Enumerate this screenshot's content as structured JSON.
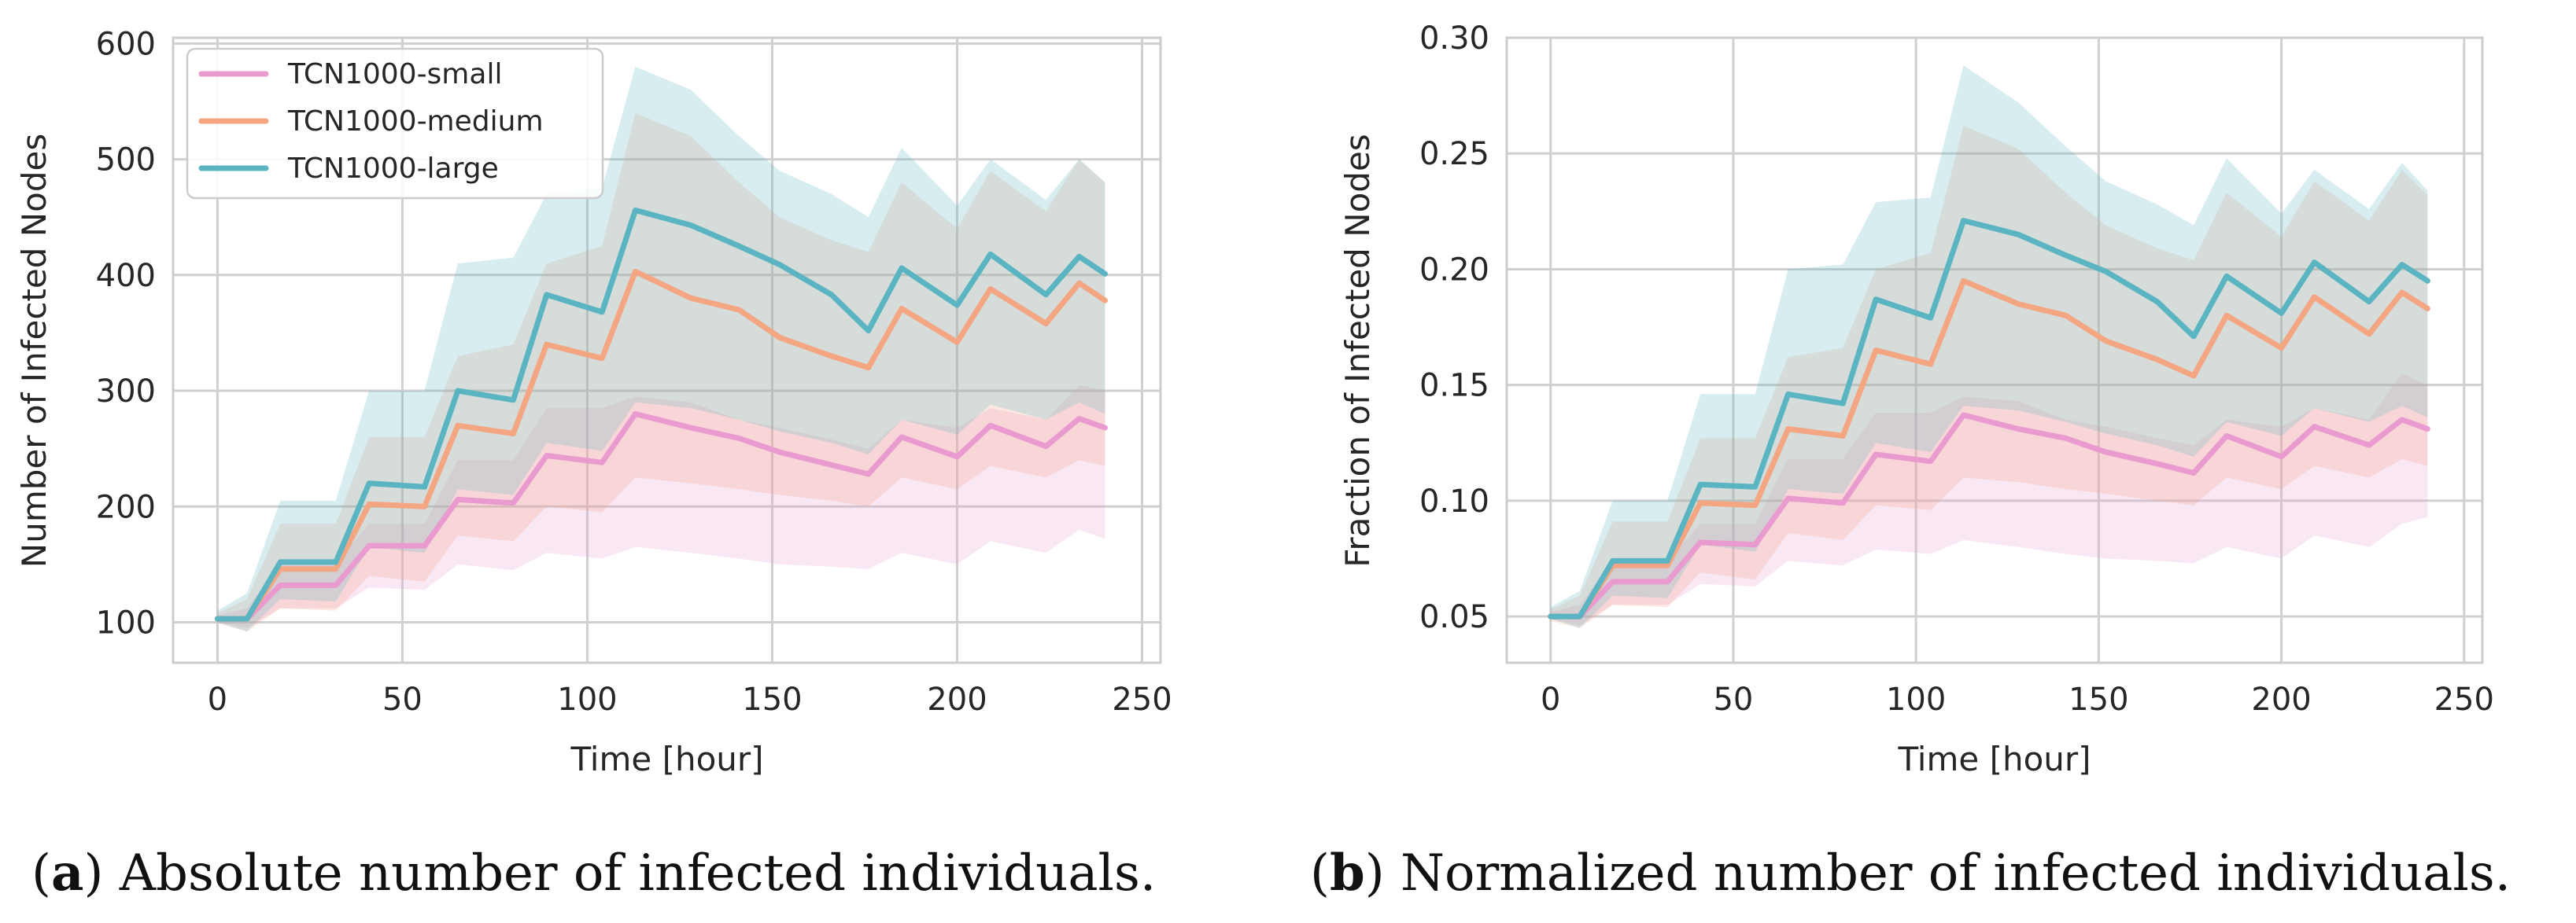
{
  "chart_data": [
    {
      "type": "line",
      "panel_label": "a",
      "caption": "Absolute number of infected individuals.",
      "xlabel": "Time [hour]",
      "ylabel": "Number of Infected Nodes",
      "xlim": [
        -12,
        255
      ],
      "ylim": [
        65,
        605
      ],
      "xticks": [
        0,
        50,
        100,
        150,
        200,
        250
      ],
      "yticks": [
        100,
        200,
        300,
        400,
        500,
        600
      ],
      "grid": true,
      "legend_position": "top-left",
      "x": [
        0,
        8,
        17,
        32,
        41,
        56,
        65,
        80,
        89,
        104,
        113,
        128,
        141,
        152,
        166,
        176,
        185,
        200,
        209,
        224,
        233,
        240
      ],
      "series": [
        {
          "name": "TCN1000-small",
          "color": "#e99bd0",
          "values": [
            103,
            103,
            132,
            132,
            166,
            166,
            206,
            203,
            244,
            238,
            280,
            268,
            259,
            247,
            236,
            228,
            260,
            243,
            270,
            252,
            276,
            268
          ],
          "lower": [
            100,
            95,
            112,
            112,
            130,
            128,
            150,
            145,
            160,
            155,
            165,
            160,
            155,
            150,
            148,
            146,
            160,
            150,
            170,
            160,
            180,
            172
          ],
          "upper": [
            106,
            112,
            150,
            150,
            185,
            185,
            240,
            240,
            285,
            285,
            295,
            290,
            275,
            268,
            258,
            250,
            275,
            268,
            285,
            275,
            305,
            300
          ]
        },
        {
          "name": "TCN1000-medium",
          "color": "#f4a582",
          "values": [
            103,
            103,
            146,
            146,
            202,
            200,
            270,
            263,
            340,
            328,
            403,
            380,
            370,
            346,
            330,
            320,
            371,
            342,
            388,
            358,
            393,
            378
          ],
          "lower": [
            99,
            92,
            112,
            110,
            140,
            135,
            175,
            170,
            200,
            195,
            225,
            220,
            215,
            210,
            205,
            200,
            225,
            215,
            235,
            225,
            240,
            235
          ],
          "upper": [
            108,
            120,
            185,
            185,
            260,
            260,
            330,
            340,
            410,
            425,
            540,
            520,
            480,
            450,
            430,
            420,
            480,
            440,
            490,
            455,
            500,
            480
          ]
        },
        {
          "name": "TCN1000-large",
          "color": "#5ab4c1",
          "values": [
            103,
            103,
            152,
            152,
            220,
            217,
            300,
            292,
            383,
            368,
            456,
            443,
            425,
            409,
            383,
            352,
            406,
            374,
            418,
            383,
            416,
            401
          ],
          "lower": [
            100,
            92,
            120,
            118,
            165,
            160,
            215,
            210,
            255,
            248,
            290,
            285,
            275,
            265,
            255,
            245,
            275,
            262,
            288,
            275,
            290,
            280
          ],
          "upper": [
            110,
            125,
            205,
            205,
            300,
            300,
            410,
            415,
            470,
            475,
            580,
            560,
            520,
            490,
            470,
            450,
            510,
            460,
            500,
            465,
            500,
            480
          ]
        }
      ]
    },
    {
      "type": "line",
      "panel_label": "b",
      "caption": "Normalized number of infected individuals.",
      "xlabel": "Time [hour]",
      "ylabel": "Fraction of Infected Nodes",
      "xlim": [
        -12,
        255
      ],
      "ylim": [
        0.03,
        0.3
      ],
      "xticks": [
        0,
        50,
        100,
        150,
        200,
        250
      ],
      "yticks": [
        0.05,
        0.1,
        0.15,
        0.2,
        0.25,
        0.3
      ],
      "ytick_labels": [
        "0.05",
        "0.10",
        "0.15",
        "0.20",
        "0.25",
        "0.30"
      ],
      "grid": true,
      "legend_position": "none",
      "x": [
        0,
        8,
        17,
        32,
        41,
        56,
        65,
        80,
        89,
        104,
        113,
        128,
        141,
        152,
        166,
        176,
        185,
        200,
        209,
        224,
        233,
        240
      ],
      "series": [
        {
          "name": "TCN1000-small",
          "color": "#e99bd0",
          "values": [
            0.05,
            0.05,
            0.065,
            0.065,
            0.082,
            0.081,
            0.101,
            0.099,
            0.12,
            0.117,
            0.137,
            0.131,
            0.127,
            0.121,
            0.116,
            0.112,
            0.128,
            0.119,
            0.132,
            0.124,
            0.135,
            0.131
          ],
          "lower": [
            0.049,
            0.046,
            0.055,
            0.055,
            0.064,
            0.063,
            0.074,
            0.072,
            0.079,
            0.077,
            0.083,
            0.08,
            0.077,
            0.075,
            0.074,
            0.073,
            0.08,
            0.075,
            0.085,
            0.08,
            0.09,
            0.093
          ],
          "upper": [
            0.052,
            0.055,
            0.074,
            0.074,
            0.09,
            0.09,
            0.118,
            0.118,
            0.138,
            0.138,
            0.145,
            0.143,
            0.135,
            0.132,
            0.127,
            0.124,
            0.135,
            0.132,
            0.14,
            0.135,
            0.155,
            0.15
          ]
        },
        {
          "name": "TCN1000-medium",
          "color": "#f4a582",
          "values": [
            0.05,
            0.05,
            0.072,
            0.072,
            0.099,
            0.098,
            0.131,
            0.128,
            0.165,
            0.159,
            0.195,
            0.185,
            0.18,
            0.169,
            0.161,
            0.154,
            0.18,
            0.166,
            0.188,
            0.172,
            0.19,
            0.183
          ],
          "lower": [
            0.048,
            0.045,
            0.055,
            0.054,
            0.069,
            0.066,
            0.086,
            0.083,
            0.098,
            0.096,
            0.11,
            0.108,
            0.105,
            0.103,
            0.1,
            0.098,
            0.11,
            0.105,
            0.115,
            0.11,
            0.118,
            0.115
          ],
          "upper": [
            0.053,
            0.059,
            0.091,
            0.091,
            0.127,
            0.127,
            0.162,
            0.166,
            0.2,
            0.207,
            0.262,
            0.252,
            0.233,
            0.219,
            0.209,
            0.204,
            0.233,
            0.214,
            0.238,
            0.221,
            0.243,
            0.232
          ]
        },
        {
          "name": "TCN1000-large",
          "color": "#5ab4c1",
          "values": [
            0.05,
            0.05,
            0.074,
            0.074,
            0.107,
            0.106,
            0.146,
            0.142,
            0.187,
            0.179,
            0.221,
            0.215,
            0.206,
            0.199,
            0.186,
            0.171,
            0.197,
            0.181,
            0.203,
            0.186,
            0.202,
            0.195
          ],
          "lower": [
            0.049,
            0.045,
            0.059,
            0.058,
            0.081,
            0.078,
            0.105,
            0.103,
            0.125,
            0.121,
            0.141,
            0.139,
            0.134,
            0.129,
            0.124,
            0.119,
            0.134,
            0.128,
            0.14,
            0.134,
            0.141,
            0.136
          ],
          "upper": [
            0.054,
            0.061,
            0.1,
            0.1,
            0.146,
            0.146,
            0.2,
            0.202,
            0.229,
            0.231,
            0.288,
            0.272,
            0.253,
            0.238,
            0.228,
            0.219,
            0.248,
            0.224,
            0.243,
            0.226,
            0.246,
            0.234
          ]
        }
      ]
    }
  ]
}
